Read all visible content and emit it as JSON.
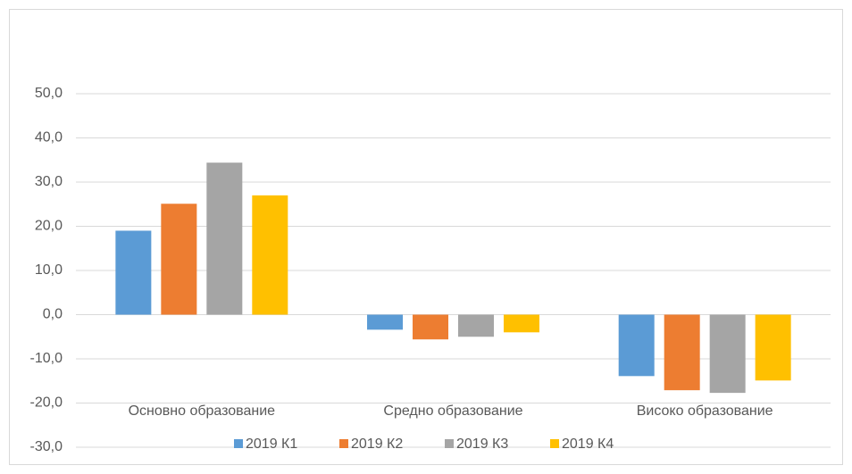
{
  "chart_data": {
    "type": "bar",
    "categories": [
      "Основно образование",
      "Средно образование",
      "Високо образование"
    ],
    "series": [
      {
        "name": "2019 К1",
        "color": "#5b9bd5",
        "values": [
          19.0,
          -3.4,
          -13.9
        ]
      },
      {
        "name": "2019 К2",
        "color": "#ed7d31",
        "values": [
          25.1,
          -5.6,
          -17.1
        ]
      },
      {
        "name": "2019 К3",
        "color": "#a5a5a5",
        "values": [
          34.4,
          -5.0,
          -17.7
        ]
      },
      {
        "name": "2019 К4",
        "color": "#ffc000",
        "values": [
          27.0,
          -4.0,
          -14.9
        ]
      }
    ],
    "ylim": [
      -30,
      50
    ],
    "yticks": [
      {
        "value": -30,
        "label": "-30,0"
      },
      {
        "value": -20,
        "label": "-20,0"
      },
      {
        "value": -10,
        "label": "-10,0"
      },
      {
        "value": 0,
        "label": "0,0"
      },
      {
        "value": 10,
        "label": "10,0"
      },
      {
        "value": 20,
        "label": "20,0"
      },
      {
        "value": 30,
        "label": "30,0"
      },
      {
        "value": 40,
        "label": "40,0"
      },
      {
        "value": 50,
        "label": "50,0"
      }
    ],
    "grid": true,
    "legend": "bottom"
  }
}
